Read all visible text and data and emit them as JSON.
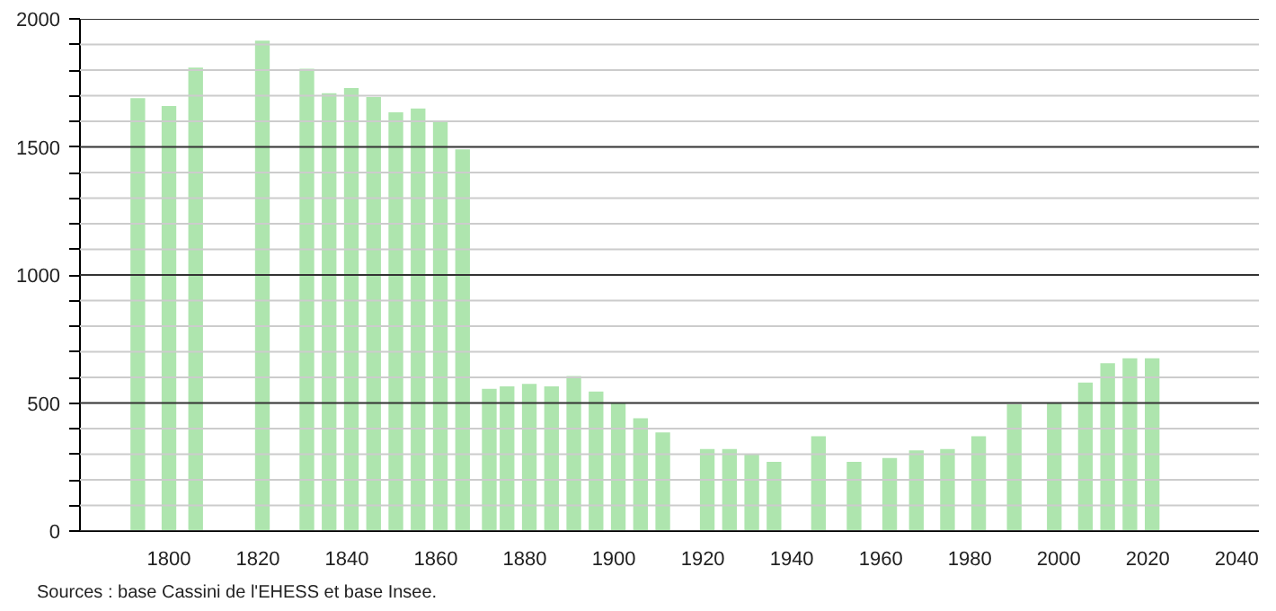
{
  "chart_data": {
    "type": "bar",
    "x": [
      1793,
      1800,
      1806,
      1821,
      1831,
      1836,
      1841,
      1846,
      1851,
      1856,
      1861,
      1866,
      1872,
      1876,
      1881,
      1886,
      1891,
      1896,
      1901,
      1906,
      1911,
      1921,
      1926,
      1931,
      1936,
      1946,
      1954,
      1962,
      1968,
      1975,
      1982,
      1990,
      1999,
      2006,
      2011,
      2016,
      2021
    ],
    "values": [
      1690,
      1660,
      1810,
      1915,
      1805,
      1710,
      1730,
      1695,
      1635,
      1650,
      1600,
      1490,
      555,
      565,
      575,
      565,
      605,
      545,
      500,
      440,
      385,
      320,
      320,
      300,
      270,
      370,
      270,
      285,
      315,
      320,
      370,
      495,
      500,
      580,
      655,
      675,
      675
    ],
    "color": "#aee5ae",
    "xlim": [
      1780,
      2045
    ],
    "xticks": [
      1800,
      1820,
      1840,
      1860,
      1880,
      1900,
      1920,
      1940,
      1960,
      1980,
      2000,
      2020,
      2040
    ],
    "ylim": [
      0,
      2000
    ],
    "yticks": [
      0,
      {
        "value": 100,
        "label": null
      },
      {
        "value": 200,
        "label": null
      },
      {
        "value": 300,
        "label": null
      },
      {
        "value": 400,
        "label": null
      },
      500,
      {
        "value": 600,
        "label": null
      },
      {
        "value": 700,
        "label": null
      },
      {
        "value": 800,
        "label": null
      },
      {
        "value": 900,
        "label": null
      },
      1000,
      {
        "value": 1100,
        "label": null
      },
      {
        "value": 1200,
        "label": null
      },
      {
        "value": 1300,
        "label": null
      },
      {
        "value": 1400,
        "label": null
      },
      1500,
      {
        "value": 1600,
        "label": null
      },
      {
        "value": 1700,
        "label": null
      },
      {
        "value": 1800,
        "label": null
      },
      {
        "value": 1900,
        "label": null
      },
      2000
    ],
    "grid": "y",
    "annotations": [
      "Sources : base Cassini de l'EHESS et base Insee."
    ]
  }
}
